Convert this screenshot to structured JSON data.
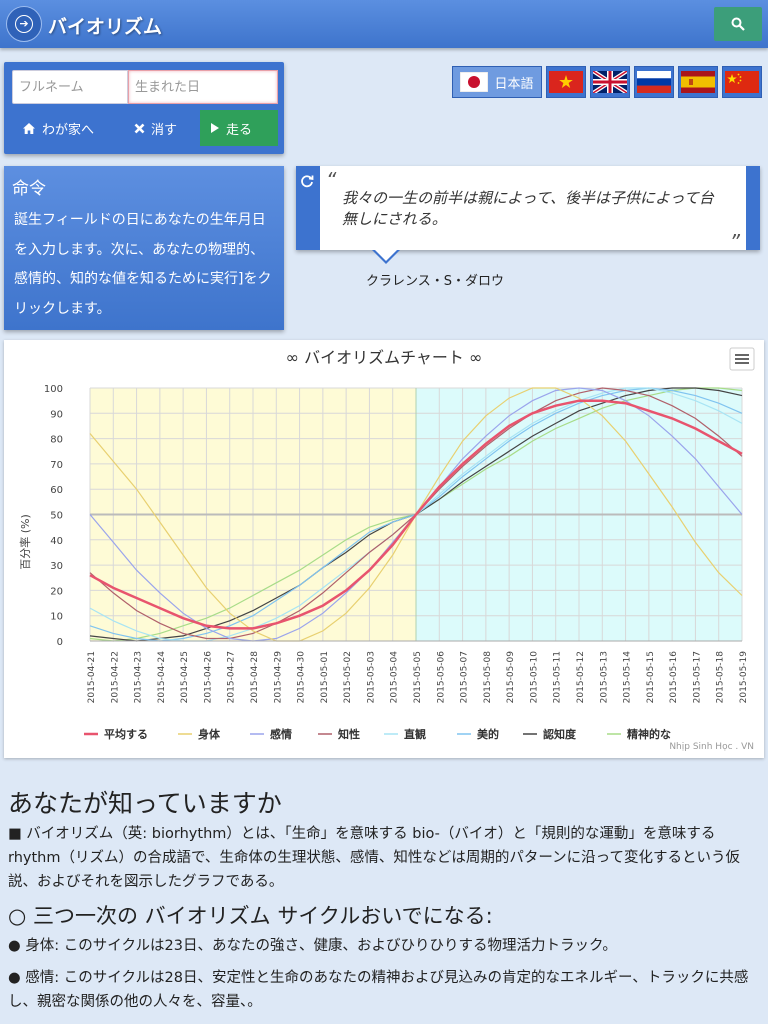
{
  "header": {
    "title": "バイオリズム"
  },
  "form": {
    "name_placeholder": "フルネーム",
    "date_placeholder": "生まれた日",
    "home_label": "わが家へ",
    "clear_label": "消す",
    "run_label": "走る"
  },
  "languages": {
    "current_label": "日本語"
  },
  "command": {
    "title": "命令",
    "text": "誕生フィールドの日にあなたの生年月日を入力します。次に、あなたの物理的、感情的、知的な値を知るために実行]をクリックします。"
  },
  "quote": {
    "open_mark": "“",
    "close_mark": "”",
    "text": "我々の一生の前半は親によって、後半は子供によって台無しにされる。",
    "author": "クラレンス・S・ダロウ"
  },
  "chart_data": {
    "type": "line",
    "title": "∞ バイオリズムチャート ∞",
    "xlabel": "",
    "ylabel": "百分率 (%)",
    "ylim": [
      0,
      100
    ],
    "yticks": [
      0,
      10,
      20,
      30,
      40,
      50,
      60,
      70,
      80,
      90,
      100
    ],
    "grid": true,
    "legend_position": "bottom",
    "credit": "Nhịp Sinh Học . VN",
    "menu_icon": "hamburger-icon",
    "past_band_color": "#fefbd6",
    "future_band_color": "#dcfbfb",
    "categories": [
      "2015-04-21",
      "2015-04-22",
      "2015-04-23",
      "2015-04-24",
      "2015-04-25",
      "2015-04-26",
      "2015-04-27",
      "2015-04-28",
      "2015-04-29",
      "2015-04-30",
      "2015-05-01",
      "2015-05-02",
      "2015-05-03",
      "2015-05-04",
      "2015-05-05",
      "2015-05-06",
      "2015-05-07",
      "2015-05-08",
      "2015-05-09",
      "2015-05-10",
      "2015-05-11",
      "2015-05-12",
      "2015-05-13",
      "2015-05-14",
      "2015-05-15",
      "2015-05-16",
      "2015-05-17",
      "2015-05-18",
      "2015-05-19"
    ],
    "series": [
      {
        "name": "平均する",
        "color": "#e8546e",
        "bold": true,
        "values": [
          26,
          21,
          17,
          13,
          9,
          6,
          5,
          5,
          7,
          10,
          14,
          20,
          28,
          38,
          50,
          61,
          70,
          78,
          85,
          90,
          93,
          95,
          95,
          94,
          91,
          88,
          84,
          79,
          74
        ]
      },
      {
        "name": "身体",
        "color": "#e8d070",
        "values": [
          82,
          71,
          60,
          47,
          34,
          21,
          11,
          4,
          0,
          0,
          4,
          11,
          21,
          34,
          50,
          65,
          79,
          89,
          96,
          100,
          100,
          96,
          89,
          79,
          66,
          53,
          39,
          27,
          18
        ]
      },
      {
        "name": "感情",
        "color": "#9aa4ec",
        "values": [
          50,
          39,
          28,
          19,
          11,
          5,
          1,
          0,
          1,
          5,
          11,
          19,
          28,
          39,
          50,
          61,
          72,
          81,
          89,
          95,
          99,
          100,
          99,
          95,
          89,
          81,
          72,
          61,
          50
        ]
      },
      {
        "name": "知性",
        "color": "#b0606a",
        "values": [
          27,
          19,
          12,
          7,
          3,
          1,
          1,
          3,
          7,
          12,
          19,
          27,
          35,
          42,
          50,
          60,
          69,
          77,
          84,
          90,
          95,
          98,
          100,
          99,
          97,
          93,
          88,
          81,
          73
        ]
      },
      {
        "name": "直観",
        "color": "#a8e4f4",
        "values": [
          13,
          8,
          4,
          1,
          0,
          0,
          2,
          5,
          9,
          14,
          21,
          28,
          35,
          42,
          50,
          58,
          66,
          73,
          80,
          86,
          91,
          95,
          98,
          100,
          100,
          98,
          95,
          91,
          86
        ]
      },
      {
        "name": "美的",
        "color": "#80c4f0",
        "values": [
          6,
          3,
          1,
          0,
          1,
          3,
          6,
          10,
          16,
          22,
          29,
          36,
          43,
          47,
          50,
          57,
          65,
          72,
          79,
          85,
          90,
          94,
          97,
          99,
          100,
          99,
          97,
          94,
          90
        ]
      },
      {
        "name": "認知度",
        "color": "#444444",
        "values": [
          2,
          1,
          0,
          1,
          2,
          5,
          8,
          12,
          17,
          22,
          29,
          35,
          42,
          47,
          50,
          56,
          63,
          69,
          75,
          81,
          86,
          91,
          94,
          97,
          99,
          100,
          100,
          99,
          97
        ]
      },
      {
        "name": "精神的な",
        "color": "#a8dc88",
        "values": [
          1,
          0,
          1,
          3,
          6,
          9,
          13,
          18,
          23,
          28,
          34,
          40,
          45,
          48,
          50,
          56,
          62,
          68,
          73,
          79,
          84,
          88,
          92,
          95,
          97,
          99,
          100,
          100,
          99
        ]
      }
    ]
  },
  "info": {
    "title": "あなたが知っていますか",
    "p1": "■ バイオリズム（英: biorhythm）とは、「生命」を意味する bio-（バイオ）と「規則的な運動」を意味する rhythm（リズム）の合成語で、生命体の生理状態、感情、知性などは周期的パターンに沿って変化するという仮説、およびそれを図示したグラフである。",
    "h2": "○ 三つ一次の バイオリズム サイクルおいでになる:",
    "p2": "● 身体: このサイクルは23日、あなたの強さ、健康、およびひりひりする物理活力トラック。",
    "p3": "● 感情: このサイクルは28日、安定性と生命のあなたの精神および見込みの肯定的なエネルギー、トラックに共感し、親密な関係の他の人々を、容量、。"
  }
}
